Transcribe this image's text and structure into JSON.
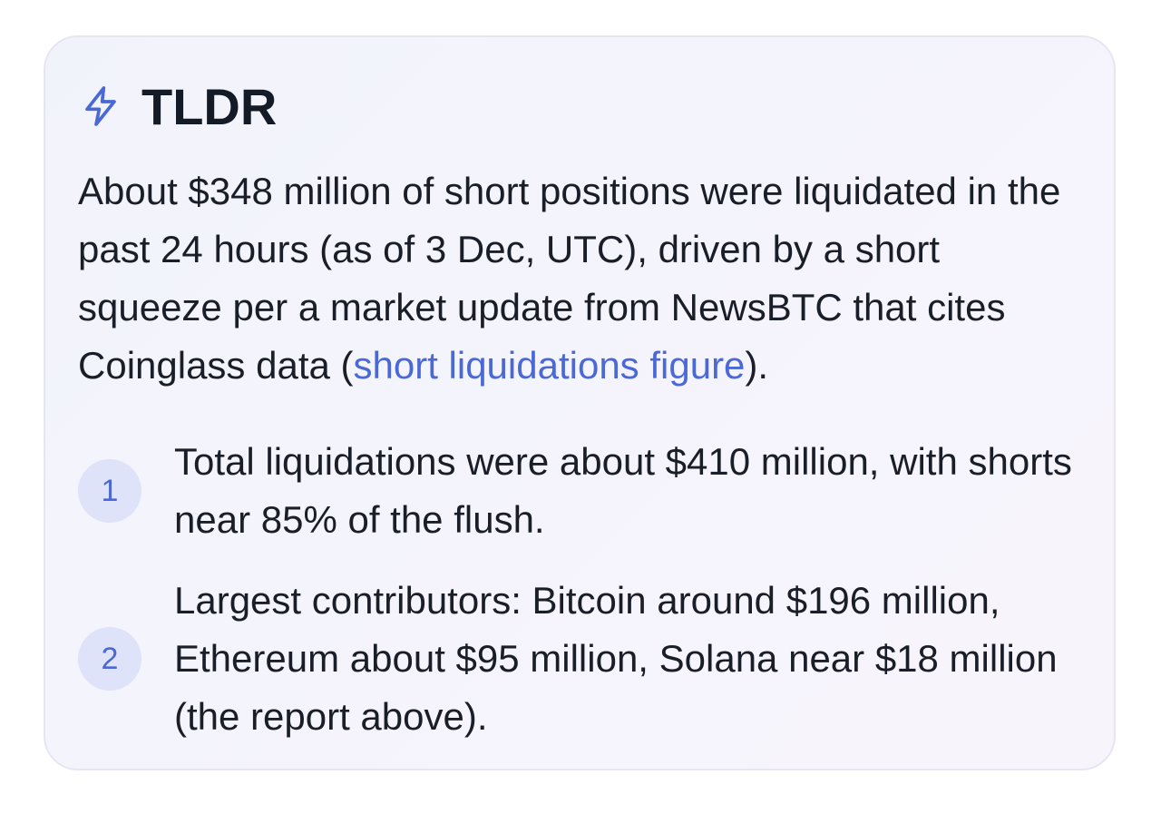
{
  "tldr": {
    "title": "TLDR",
    "icon": "bolt-icon",
    "accent_color": "#4a68d6",
    "summary_before_link": "About $348 million of short positions were liquidated in the past 24 hours (as of 3 Dec, UTC), driven by a short squeeze per a market update from NewsBTC that cites Coinglass data (",
    "summary_link": "short liquidations figure",
    "summary_after_link": ").",
    "items": [
      {
        "number": "1",
        "text": "Total liquidations were about $410 million, with shorts near 85% of the flush."
      },
      {
        "number": "2",
        "text": "Largest contributors: Bitcoin around $196 million, Ethereum about $95 million, Solana near $18 million (the report above)."
      }
    ]
  }
}
